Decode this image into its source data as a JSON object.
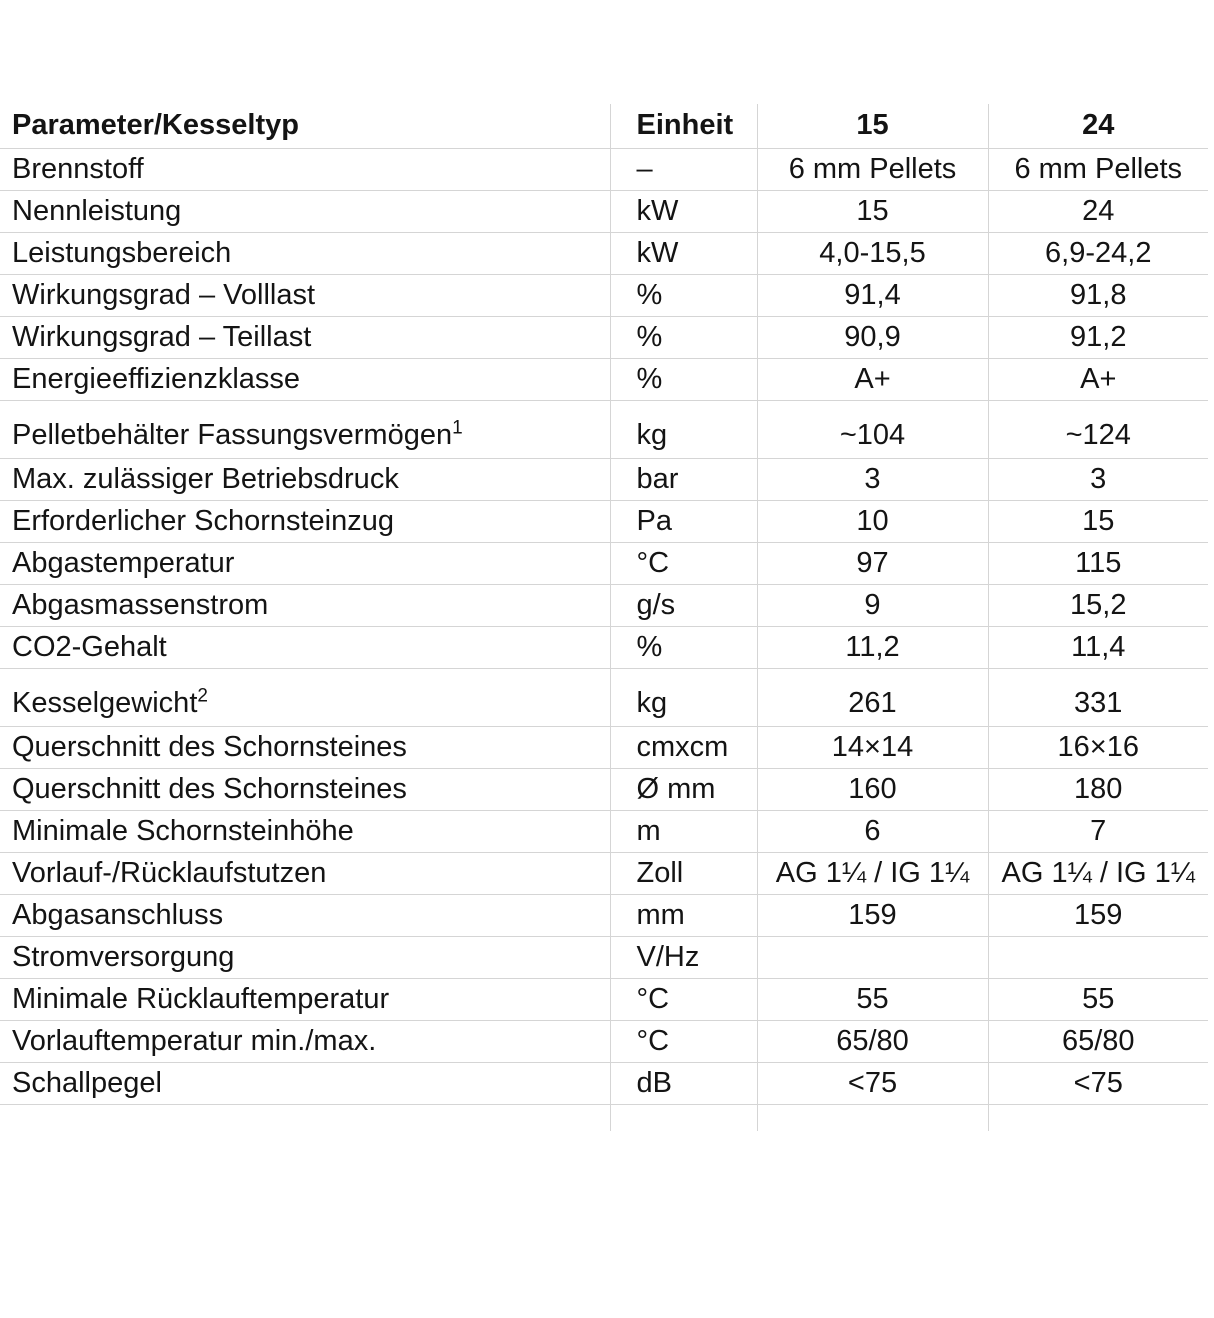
{
  "table": {
    "header": {
      "param": "Parameter/Kesseltyp",
      "unit": "Einheit",
      "col15": "15",
      "col24": "24"
    },
    "rows": [
      {
        "param": "Brennstoff",
        "unit": "–",
        "v15": "6 mm Pellets",
        "v24": "6 mm Pellets"
      },
      {
        "param": "Nennleistung",
        "unit": "kW",
        "v15": "15",
        "v24": "24"
      },
      {
        "param": "Leistungsbereich",
        "unit": "kW",
        "v15": "4,0-15,5",
        "v24": "6,9-24,2"
      },
      {
        "param": "Wirkungsgrad – Volllast",
        "unit": "%",
        "v15": "91,4",
        "v24": "91,8"
      },
      {
        "param": "Wirkungsgrad – Teillast",
        "unit": "%",
        "v15": "90,9",
        "v24": "91,2"
      },
      {
        "param": "Energieeffizienzklasse",
        "unit": "%",
        "v15": "A+",
        "v24": "A+"
      },
      {
        "param": "Pelletbehälter Fassungsvermögen",
        "sup": "1",
        "unit": "kg",
        "v15": "~104",
        "v24": "~124"
      },
      {
        "param": "Max. zulässiger Betriebsdruck",
        "unit": "bar",
        "v15": "3",
        "v24": "3"
      },
      {
        "param": "Erforderlicher Schornsteinzug",
        "unit": "Pa",
        "v15": "10",
        "v24": "15"
      },
      {
        "param": "Abgastemperatur",
        "unit": "°C",
        "v15": "97",
        "v24": "115"
      },
      {
        "param": "Abgasmassenstrom",
        "unit": "g/s",
        "v15": "9",
        "v24": "15,2"
      },
      {
        "param": "CO2-Gehalt",
        "unit": "%",
        "v15": "11,2",
        "v24": "11,4"
      },
      {
        "param": "Kesselgewicht",
        "sup": "2",
        "unit": "kg",
        "v15": "261",
        "v24": "331"
      },
      {
        "param": "Querschnitt des Schornsteines",
        "unit": "cmxcm",
        "v15": "14×14",
        "v24": "16×16"
      },
      {
        "param": "Querschnitt des Schornsteines",
        "unit": "Ø mm",
        "v15": "160",
        "v24": "180"
      },
      {
        "param": "Minimale Schornsteinhöhe",
        "unit": "m",
        "v15": "6",
        "v24": "7"
      },
      {
        "param": "Vorlauf-/Rücklaufstutzen",
        "unit": "Zoll",
        "v15": "AG 1¼ / IG 1¼",
        "v24": "AG 1¼ / IG 1¼"
      },
      {
        "param": "Abgasanschluss",
        "unit": "mm",
        "v15": "159",
        "v24": "159"
      },
      {
        "param": "Stromversorgung",
        "unit": "V/Hz",
        "v15": "",
        "v24": ""
      },
      {
        "param": "Minimale Rücklauftemperatur",
        "unit": "°C",
        "v15": "55",
        "v24": "55"
      },
      {
        "param": "Vorlauftemperatur min./max.",
        "unit": "°C",
        "v15": "65/80",
        "v24": "65/80"
      },
      {
        "param": "Schallpegel",
        "unit": "dB",
        "v15": "<75",
        "v24": "<75"
      }
    ]
  },
  "colors": {
    "background": "#ffffff",
    "text": "#141414",
    "grid_border": "#d5d5d5"
  }
}
